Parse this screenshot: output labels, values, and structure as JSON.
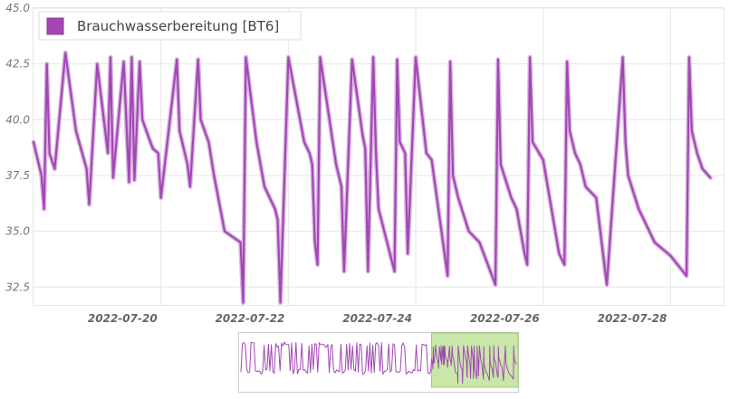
{
  "chart_data": {
    "type": "line",
    "x_unit": "date",
    "xlim": [
      "2022-07-18T00:00",
      "2022-07-28T20:00"
    ],
    "ylim": [
      31.7,
      45.0
    ],
    "y_ticks": [
      "32.5",
      "35.0",
      "37.5",
      "40.0",
      "42.5",
      "45.0"
    ],
    "x_ticks": [
      "2022-07-20",
      "2022-07-22",
      "2022-07-24",
      "2022-07-26",
      "2022-07-28"
    ],
    "grid": true,
    "legend_position": "top-left",
    "series": [
      {
        "name": "Brauchwasserbereitung [BT6]",
        "color": "#a347b5",
        "x": [
          "2022-07-18T00:00",
          "2022-07-18T03:00",
          "2022-07-18T04:00",
          "2022-07-18T05:00",
          "2022-07-18T06:00",
          "2022-07-18T08:00",
          "2022-07-18T12:00",
          "2022-07-18T16:00",
          "2022-07-18T20:00",
          "2022-07-18T21:00",
          "2022-07-19T00:00",
          "2022-07-19T04:00",
          "2022-07-19T05:00",
          "2022-07-19T06:00",
          "2022-07-19T10:00",
          "2022-07-19T12:00",
          "2022-07-19T13:00",
          "2022-07-19T14:00",
          "2022-07-19T16:00",
          "2022-07-19T17:00",
          "2022-07-19T20:00",
          "2022-07-19T21:00",
          "2022-07-19T23:00",
          "2022-07-20T00:00",
          "2022-07-20T06:00",
          "2022-07-20T07:00",
          "2022-07-20T10:00",
          "2022-07-20T11:00",
          "2022-07-20T14:00",
          "2022-07-20T15:00",
          "2022-07-20T18:00",
          "2022-07-20T20:00",
          "2022-07-21T00:00",
          "2022-07-21T06:00",
          "2022-07-21T07:00",
          "2022-07-21T08:00",
          "2022-07-21T12:00",
          "2022-07-21T15:00",
          "2022-07-21T17:00",
          "2022-07-21T19:00",
          "2022-07-21T20:00",
          "2022-07-21T21:00",
          "2022-07-22T00:00",
          "2022-07-22T06:00",
          "2022-07-22T08:00",
          "2022-07-22T09:00",
          "2022-07-22T10:00",
          "2022-07-22T11:00",
          "2022-07-22T12:00",
          "2022-07-22T18:00",
          "2022-07-22T20:00",
          "2022-07-22T21:00",
          "2022-07-23T00:00",
          "2022-07-23T04:00",
          "2022-07-23T05:00",
          "2022-07-23T06:00",
          "2022-07-23T08:00",
          "2022-07-23T09:00",
          "2022-07-23T10:00",
          "2022-07-23T16:00",
          "2022-07-23T17:00",
          "2022-07-23T18:00",
          "2022-07-23T20:00",
          "2022-07-23T21:00",
          "2022-07-24T00:00",
          "2022-07-24T04:00",
          "2022-07-24T06:00",
          "2022-07-24T12:00",
          "2022-07-24T13:00",
          "2022-07-24T14:00",
          "2022-07-24T16:00",
          "2022-07-24T20:00",
          "2022-07-25T00:00",
          "2022-07-25T06:00",
          "2022-07-25T07:00",
          "2022-07-25T08:00",
          "2022-07-25T12:00",
          "2022-07-25T14:00",
          "2022-07-25T17:00",
          "2022-07-25T18:00",
          "2022-07-25T19:00",
          "2022-07-25T20:00",
          "2022-07-26T00:00",
          "2022-07-26T06:00",
          "2022-07-26T08:00",
          "2022-07-26T09:00",
          "2022-07-26T10:00",
          "2022-07-26T12:00",
          "2022-07-26T14:00",
          "2022-07-26T16:00",
          "2022-07-26T20:00",
          "2022-07-27T00:00",
          "2022-07-27T06:00",
          "2022-07-27T07:00",
          "2022-07-27T08:00",
          "2022-07-27T12:00",
          "2022-07-27T14:00",
          "2022-07-27T18:00",
          "2022-07-28T00:00",
          "2022-07-28T06:00",
          "2022-07-28T07:00",
          "2022-07-28T08:00",
          "2022-07-28T10:00",
          "2022-07-28T12:00",
          "2022-07-28T15:00"
        ],
        "y": [
          39.0,
          37.5,
          36.0,
          42.5,
          38.5,
          37.8,
          43.0,
          39.5,
          37.8,
          36.2,
          42.5,
          38.5,
          42.8,
          37.4,
          42.6,
          37.2,
          42.8,
          37.3,
          42.6,
          40.0,
          39.0,
          38.7,
          38.5,
          36.5,
          42.7,
          39.5,
          38.0,
          37.0,
          42.7,
          40.0,
          39.0,
          37.5,
          35.0,
          34.5,
          31.8,
          42.8,
          39.0,
          37.0,
          36.5,
          36.0,
          35.5,
          31.8,
          42.8,
          39.0,
          38.5,
          38.0,
          34.5,
          33.5,
          42.8,
          38.0,
          37.0,
          33.2,
          42.7,
          39.3,
          38.7,
          33.2,
          42.8,
          38.5,
          36.0,
          33.2,
          42.7,
          39.0,
          38.5,
          34.0,
          42.8,
          38.5,
          38.2,
          33.0,
          42.6,
          37.5,
          36.5,
          35.0,
          34.5,
          32.6,
          42.7,
          38.0,
          36.5,
          36.0,
          34.0,
          33.5,
          42.8,
          39.0,
          38.2,
          34.0,
          33.5,
          42.6,
          39.5,
          38.5,
          38.0,
          37.0,
          36.5,
          32.6,
          42.8,
          39.0,
          37.5,
          36.0,
          35.5,
          34.5,
          33.9,
          33.0,
          42.8,
          39.5,
          38.5,
          37.8,
          37.4
        ]
      }
    ]
  },
  "navigator": {
    "line_color": "#a347b5",
    "selection_color": "#bfe39a",
    "selection_start": 0.69,
    "selection_end": 1.0
  }
}
